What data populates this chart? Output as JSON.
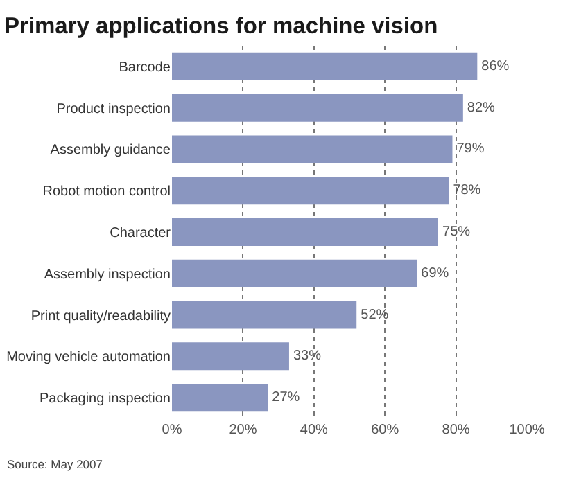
{
  "chart_data": {
    "type": "bar",
    "orientation": "horizontal",
    "title": "Primary applications for machine vision",
    "categories": [
      "Barcode",
      "Product inspection",
      "Assembly guidance",
      "Robot motion control",
      "Character",
      "Assembly inspection",
      "Print quality/readability",
      "Moving vehicle automation",
      "Packaging inspection"
    ],
    "values": [
      86,
      82,
      79,
      78,
      75,
      69,
      52,
      33,
      27
    ],
    "value_labels": [
      "86%",
      "82%",
      "79%",
      "78%",
      "75%",
      "69%",
      "52%",
      "33%",
      "27%"
    ],
    "color": "#8a96c0",
    "xlim": [
      0,
      100
    ],
    "xticks": [
      {
        "value": 0,
        "label": "0%"
      },
      {
        "value": 20,
        "label": "20%"
      },
      {
        "value": 40,
        "label": "40%"
      },
      {
        "value": 60,
        "label": "60%"
      },
      {
        "value": 80,
        "label": "80%"
      },
      {
        "value": 100,
        "label": "100%"
      }
    ],
    "grid": "x",
    "annotations": [
      "Source: May 2007"
    ]
  }
}
